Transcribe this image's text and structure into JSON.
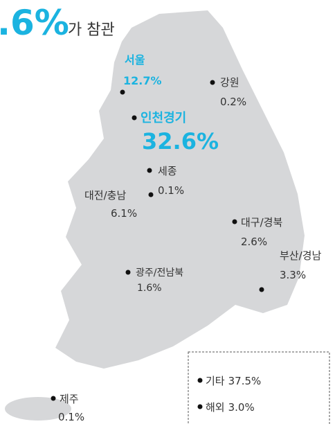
{
  "header": {
    "value_text": ".6%",
    "text": "가 참관"
  },
  "regions": [
    {
      "name": "서울",
      "value": "12.7%"
    },
    {
      "name": "강원",
      "value": "0.2%"
    },
    {
      "name": "인천경기",
      "value": "32.6%"
    },
    {
      "name": "세종",
      "value": "0.1%"
    },
    {
      "name": "대전/충남",
      "value": "6.1%"
    },
    {
      "name": "대구/경북",
      "value": "2.6%"
    },
    {
      "name": "광주/전남북",
      "value": "1.6%"
    },
    {
      "name": "부산/경남",
      "value": "3.3%"
    },
    {
      "name": "제주",
      "value": "0.1%"
    }
  ],
  "other_box": [
    {
      "name": "기타",
      "value": "37.5%"
    },
    {
      "name": "해외",
      "value": "3.0%"
    }
  ]
}
